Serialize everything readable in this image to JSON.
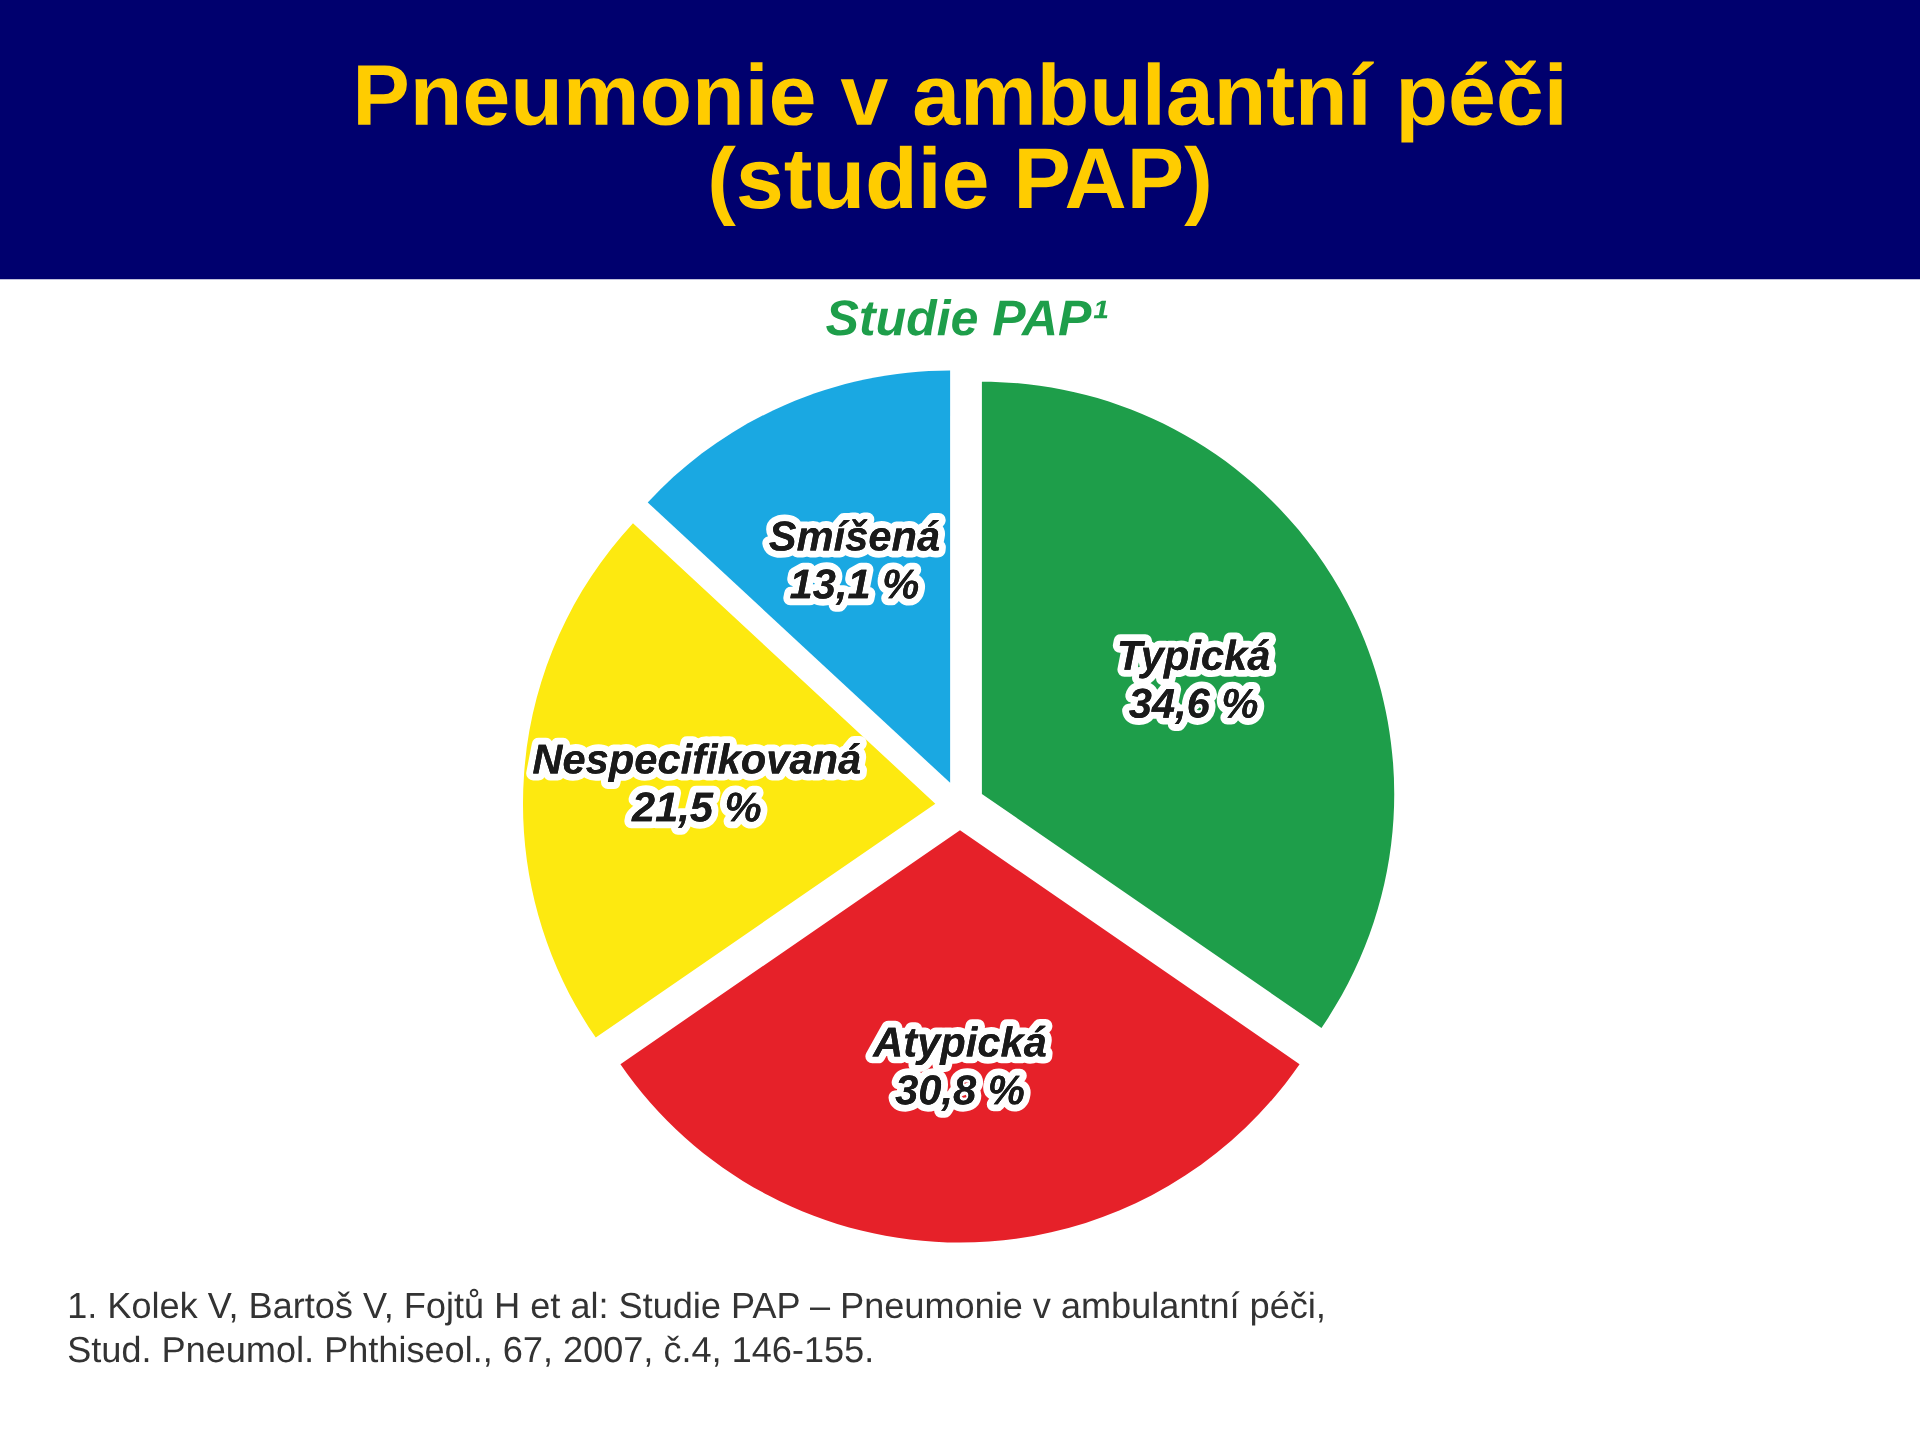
{
  "chart_data": {
    "type": "pie",
    "title": "Pneumonie v ambulantní péči\n(studie PAP)",
    "subtitle": "Studie PAP¹",
    "categories": [
      "Typická",
      "Atypická",
      "Nespecifikovaná",
      "Smíšená"
    ],
    "values": [
      34.6,
      30.8,
      21.5,
      13.1
    ],
    "colors": [
      "#1e9e4a",
      "#e62129",
      "#fde910",
      "#1aa8e2"
    ],
    "value_labels": [
      "34,6 %",
      "30,8 %",
      "21,5 %",
      "13,1 %"
    ],
    "annotations": [
      "1. Kolek V, Bartoš V, Fojtů H et al: Studie PAP – Pneumonie v ambulantní péči,\nStud. Pneumol. Phthiseol., 67, 2007, č.4, 146-155."
    ]
  }
}
